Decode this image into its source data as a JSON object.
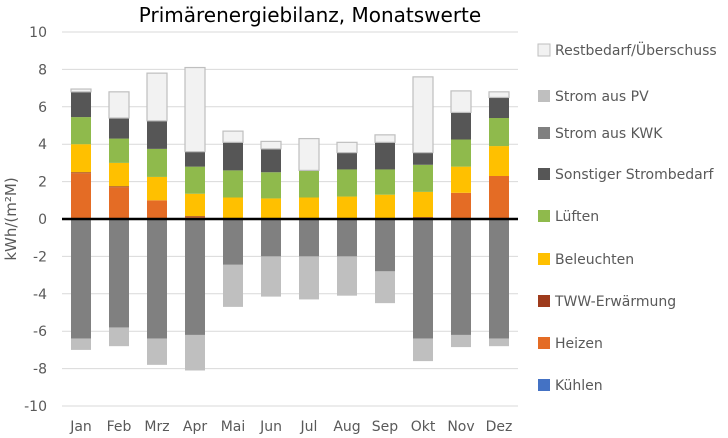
{
  "chart_data": {
    "type": "bar",
    "stacked": true,
    "title": "Primärenergiebilanz, Monatswerte",
    "xlabel": "",
    "ylabel": "kWh/(m²M)",
    "ylim": [
      -10,
      10
    ],
    "yticks": [
      10,
      8,
      6,
      4,
      2,
      0,
      -2,
      -4,
      -6,
      -8,
      -10
    ],
    "grid": true,
    "legend_position": "right",
    "categories": [
      "Jan",
      "Feb",
      "Mrz",
      "Apr",
      "Mai",
      "Jun",
      "Jul",
      "Aug",
      "Sep",
      "Okt",
      "Nov",
      "Dez"
    ],
    "series": [
      {
        "name": "Kühlen",
        "color": "#4472c4",
        "values": [
          0,
          0,
          0,
          0,
          0,
          0,
          0,
          0,
          0,
          0,
          0,
          0
        ]
      },
      {
        "name": "Heizen",
        "color": "#e46c25",
        "values": [
          2.45,
          1.7,
          1.0,
          0.1,
          0,
          0,
          0,
          0,
          0,
          0.05,
          1.4,
          2.3
        ]
      },
      {
        "name": "TWW-Erwärmung",
        "color": "#9e3b1c",
        "values": [
          0.05,
          0.05,
          0,
          0.05,
          0,
          0,
          0,
          0,
          0,
          0.05,
          0,
          0
        ]
      },
      {
        "name": "Beleuchten",
        "color": "#ffc000",
        "values": [
          1.5,
          1.25,
          1.25,
          1.2,
          1.15,
          1.1,
          1.15,
          1.2,
          1.3,
          1.35,
          1.4,
          1.6
        ]
      },
      {
        "name": "Lüften",
        "color": "#8fba4c",
        "values": [
          1.45,
          1.3,
          1.5,
          1.45,
          1.45,
          1.4,
          1.45,
          1.45,
          1.35,
          1.45,
          1.45,
          1.5
        ]
      },
      {
        "name": "Sonstiger Strombedarf",
        "color": "#565656",
        "values": [
          1.35,
          1.1,
          1.5,
          0.8,
          1.5,
          1.25,
          0,
          0.9,
          1.45,
          0.65,
          1.45,
          1.1
        ]
      },
      {
        "name": "Strom aus KWK",
        "color": "#808080",
        "values": [
          -6.4,
          -5.8,
          -6.4,
          -6.2,
          -2.45,
          -2.0,
          -2.0,
          -2.0,
          -2.8,
          -6.4,
          -6.2,
          -6.4
        ]
      },
      {
        "name": "Strom aus PV",
        "color": "#bfbfbf",
        "values": [
          -0.6,
          -1.0,
          -1.4,
          -1.9,
          -2.25,
          -2.15,
          -2.3,
          -2.1,
          -1.7,
          -1.2,
          -0.65,
          -0.4
        ]
      },
      {
        "name": "Restbedarf/Überschuss",
        "color": "#f2f2f2",
        "values": [
          0.15,
          1.4,
          2.55,
          4.5,
          0.6,
          0.4,
          1.7,
          0.55,
          0.4,
          4.05,
          1.15,
          0.3
        ]
      }
    ]
  }
}
